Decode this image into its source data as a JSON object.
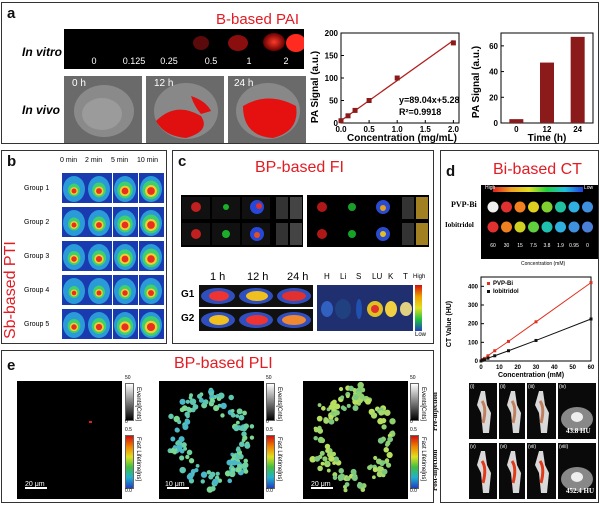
{
  "panel_a": {
    "label": "a",
    "title": "B-based PAI",
    "in_vitro_label": "In vitro",
    "in_vivo_label": "In vivo",
    "concentrations": [
      "0",
      "0.125",
      "0.25",
      "0.5",
      "1",
      "2"
    ],
    "times": [
      "0 h",
      "12 h",
      "24 h"
    ],
    "chart1": {
      "ylabel": "PA Signal (a.u.)",
      "xlabel": "Concentration (mg/mL)",
      "equation": "y=89.04x+5.28",
      "r2": "R²=0.9918",
      "xticks": [
        "0.0",
        "0.5",
        "1.0",
        "1.5",
        "2.0"
      ],
      "yticks": [
        "0",
        "50",
        "100",
        "150",
        "200"
      ]
    },
    "chart2": {
      "ylabel": "PA Signal (a.u.)",
      "xlabel": "Time (h)",
      "categories": [
        "0",
        "12",
        "24"
      ],
      "yticks": [
        "0",
        "20",
        "40",
        "60"
      ]
    }
  },
  "panel_b": {
    "label": "b",
    "title": "Sb-based PTI",
    "times": [
      "0 min",
      "2 min",
      "5 min",
      "10 min"
    ],
    "groups": [
      "Group 1",
      "Group 2",
      "Group 3",
      "Group 4",
      "Group 5"
    ]
  },
  "panel_c": {
    "label": "c",
    "title": "BP-based FI",
    "times": [
      "1 h",
      "12 h",
      "24 h"
    ],
    "rows": [
      "G1",
      "G2"
    ],
    "organs": [
      "H",
      "Li",
      "S",
      "LU",
      "K",
      "T"
    ],
    "scale_high": "High",
    "scale_low": "Low"
  },
  "panel_d": {
    "label": "d",
    "title": "Bi-based CT",
    "scale_high": "High",
    "scale_low": "Low",
    "row1": "PVP-Bi",
    "row2": "Iobitridol",
    "concs": [
      "60",
      "30",
      "15",
      "7.5",
      "3.8",
      "1.9",
      "0.95",
      "0"
    ],
    "conc_axis": "Concentration (mM)",
    "chart": {
      "ylabel": "CT Value (HU)",
      "xlabel": "Concentration (mM)",
      "legend": [
        "PVP-Bi",
        "Iobitridol"
      ],
      "xticks": [
        "0",
        "10",
        "20",
        "30",
        "40",
        "50",
        "60"
      ],
      "yticks": [
        "0",
        "100",
        "200",
        "300",
        "400"
      ]
    },
    "pre": "Pre-injection",
    "post": "Post-injection",
    "roman_top": [
      "(i)",
      "(ii)",
      "(iii)",
      "(iv)"
    ],
    "roman_bot": [
      "(v)",
      "(vi)",
      "(vii)",
      "(viii)"
    ],
    "hu_pre": "43.8 HU",
    "hu_post": "452.4 HU"
  },
  "panel_e": {
    "label": "e",
    "title": "BP-based PLI",
    "scalebars": [
      "20 μm",
      "10 μm",
      "20 μm"
    ],
    "events_label": "Events[Cnts]",
    "lifetime_label": "Fast Lifetime[ns]",
    "events_ticks": [
      "50",
      "0"
    ],
    "lifetime_ticks": [
      "0.5",
      "0.0"
    ]
  },
  "chart_data": [
    {
      "type": "scatter",
      "xlabel": "Concentration (mg/mL)",
      "ylabel": "PA Signal (a.u.)",
      "x": [
        0,
        0.125,
        0.25,
        0.5,
        1,
        2
      ],
      "y": [
        5,
        16,
        28,
        50,
        100,
        178
      ],
      "xlim": [
        0,
        2.1
      ],
      "ylim": [
        0,
        200
      ]
    },
    {
      "type": "bar",
      "xlabel": "Time (h)",
      "ylabel": "PA Signal (a.u.)",
      "categories": [
        "0",
        "12",
        "24"
      ],
      "values": [
        3,
        47,
        67
      ],
      "ylim": [
        0,
        70
      ]
    },
    {
      "type": "line",
      "xlabel": "Concentration (mM)",
      "ylabel": "CT Value (HU)",
      "x": [
        0,
        0.95,
        1.9,
        3.8,
        7.5,
        15,
        30,
        60
      ],
      "series": [
        {
          "name": "PVP-Bi",
          "values": [
            0,
            8,
            14,
            28,
            55,
            105,
            210,
            420
          ]
        },
        {
          "name": "Iobitridol",
          "values": [
            0,
            4,
            7,
            15,
            28,
            55,
            110,
            225
          ]
        }
      ],
      "xlim": [
        0,
        60
      ],
      "ylim": [
        0,
        450
      ]
    }
  ]
}
